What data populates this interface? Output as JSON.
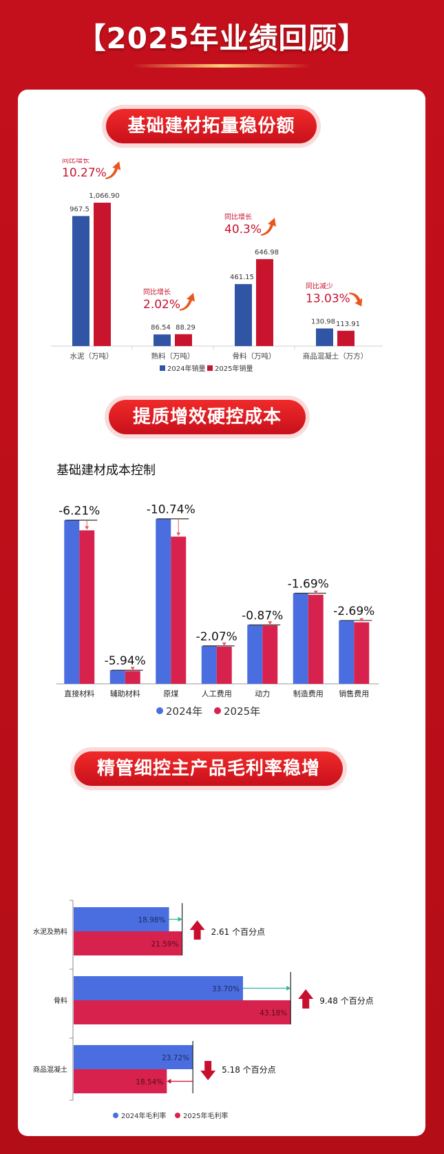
{
  "page": {
    "title": "【2025年业绩回顾】",
    "sections": [
      {
        "banner": "基础建材拓量稳份额"
      },
      {
        "banner": "提质增效硬控成本"
      },
      {
        "banner": "精管细控主产品毛利率稳增"
      }
    ]
  },
  "colors": {
    "background": "#c4101c",
    "blue_2024": "#2f55a4",
    "red_2025": "#c8142c",
    "blue_light": "#4a6ee0",
    "pink_2025": "#d7224e",
    "up_arrow": "#e8571f",
    "down_red": "#c8102e"
  },
  "chart_data": [
    {
      "type": "bar",
      "categories": [
        "水泥（万吨）",
        "熟料（万吨）",
        "骨料（万吨）",
        "商品混凝土（万方）"
      ],
      "series": [
        {
          "name": "2024年销量",
          "values": [
            967.5,
            86.54,
            461.15,
            130.98
          ],
          "labels": [
            "967.5",
            "86.54",
            "461.15",
            "130.98"
          ]
        },
        {
          "name": "2025年销量",
          "values": [
            1066.9,
            88.29,
            646.98,
            113.91
          ],
          "labels": [
            "1,066.90",
            "88.29",
            "646.98",
            "113.91"
          ]
        }
      ],
      "annotations": [
        {
          "label": "同比增长",
          "value": "10.27%",
          "direction": "up"
        },
        {
          "label": "同比增长",
          "value": "2.02%",
          "direction": "up"
        },
        {
          "label": "同比增长",
          "value": "40.3%",
          "direction": "up"
        },
        {
          "label": "同比减少",
          "value": "13.03%",
          "direction": "down"
        }
      ],
      "legend": "bottom"
    },
    {
      "type": "bar",
      "title": "基础建材成本控制",
      "categories": [
        "直接材料",
        "辅助材料",
        "原煤",
        "人工费用",
        "动力",
        "制造费用",
        "销售费用"
      ],
      "series": [
        {
          "name": "2024年",
          "values": [
            62.5,
            5.2,
            63,
            14.5,
            22.5,
            34.6,
            24.2
          ]
        },
        {
          "name": "2025年",
          "values": [
            58.6,
            4.9,
            56.2,
            14.2,
            22.3,
            34.0,
            23.5
          ]
        }
      ],
      "changes": [
        "-6.21%",
        "-5.94%",
        "-10.74%",
        "-2.07%",
        "-0.87%",
        "-1.69%",
        "-2.69%"
      ],
      "legend": "bottom"
    },
    {
      "type": "bar",
      "orientation": "horizontal",
      "categories": [
        "水泥及熟料",
        "骨料",
        "商品混凝土"
      ],
      "series": [
        {
          "name": "2024年毛利率",
          "values": [
            18.98,
            33.7,
            23.72
          ],
          "labels": [
            "18.98%",
            "33.70%",
            "23.72%"
          ]
        },
        {
          "name": "2025年毛利率",
          "values": [
            21.59,
            43.18,
            18.54
          ],
          "labels": [
            "21.59%",
            "43.18%",
            "18.54%"
          ]
        }
      ],
      "changes": [
        {
          "text": "2.61 个百分点",
          "direction": "up"
        },
        {
          "text": "9.48 个百分点",
          "direction": "up"
        },
        {
          "text": "5.18 个百分点",
          "direction": "down"
        }
      ],
      "legend": "bottom"
    }
  ]
}
